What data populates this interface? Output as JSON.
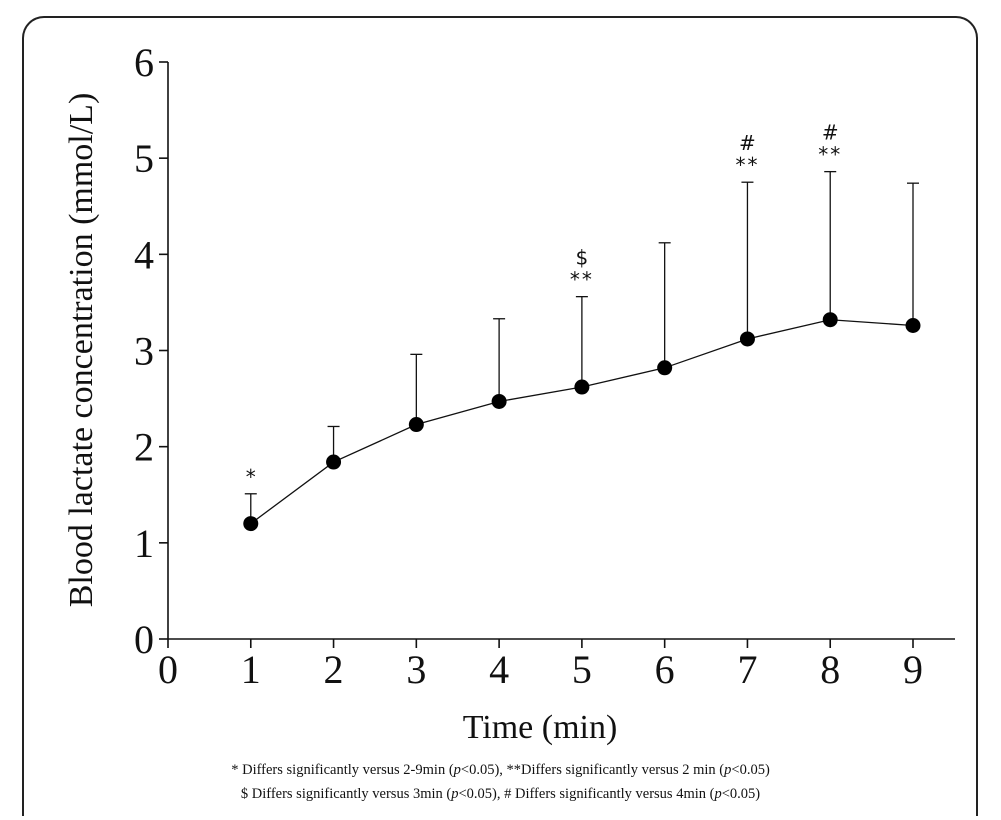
{
  "chart_data": {
    "type": "line",
    "title": "",
    "xlabel": "Time (min)",
    "ylabel": "Blood lactate concentration (mmol/L)",
    "xlim": [
      0,
      9
    ],
    "ylim": [
      0,
      6
    ],
    "xticks": [
      "0",
      "1",
      "2",
      "3",
      "4",
      "5",
      "6",
      "7",
      "8",
      "9"
    ],
    "yticks": [
      "0",
      "1",
      "2",
      "3",
      "4",
      "5",
      "6"
    ],
    "grid": false,
    "legend": "none",
    "series": [
      {
        "x": [
          1,
          2,
          3,
          4,
          5,
          6,
          7,
          8,
          9
        ],
        "y": [
          1.2,
          1.84,
          2.23,
          2.47,
          2.62,
          2.82,
          3.12,
          3.32,
          3.26
        ],
        "error_upper": [
          1.51,
          2.21,
          2.96,
          3.33,
          3.56,
          4.12,
          4.75,
          4.86,
          4.74
        ]
      }
    ],
    "annotations": [
      {
        "x": 1,
        "lines": [
          "*"
        ]
      },
      {
        "x": 5,
        "lines": [
          "$",
          "**"
        ]
      },
      {
        "x": 7,
        "lines": [
          "#",
          "**"
        ]
      },
      {
        "x": 8,
        "lines": [
          "#",
          "**"
        ]
      }
    ]
  },
  "footnotes": {
    "line1": {
      "a": "* Differs significantly versus 2-9min (",
      "p1": "p",
      "b": "<0.05), **Differs significantly versus 2 min (",
      "p2": "p",
      "c": "<0.05)"
    },
    "line2": {
      "a": "$ Differs significantly versus 3min (",
      "p1": "p",
      "b": "<0.05), # Differs significantly versus 4min (",
      "p2": "p",
      "c": "<0.05)"
    }
  }
}
